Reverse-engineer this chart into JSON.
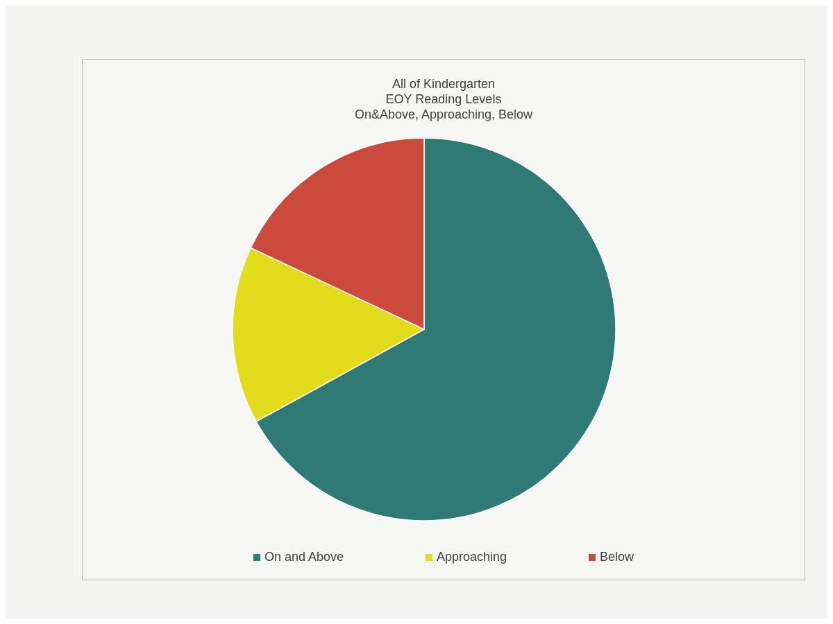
{
  "chart_data": {
    "type": "pie",
    "title": "All of Kindergarten\nEOY Reading Levels\nOn&Above, Approaching, Below",
    "categories": [
      "On and Above",
      "Approaching",
      "Below"
    ],
    "values": [
      67,
      15,
      18
    ],
    "colors": [
      "#2f7a74",
      "#e2dc1c",
      "#cc4a3c"
    ],
    "legend": "bottom"
  }
}
